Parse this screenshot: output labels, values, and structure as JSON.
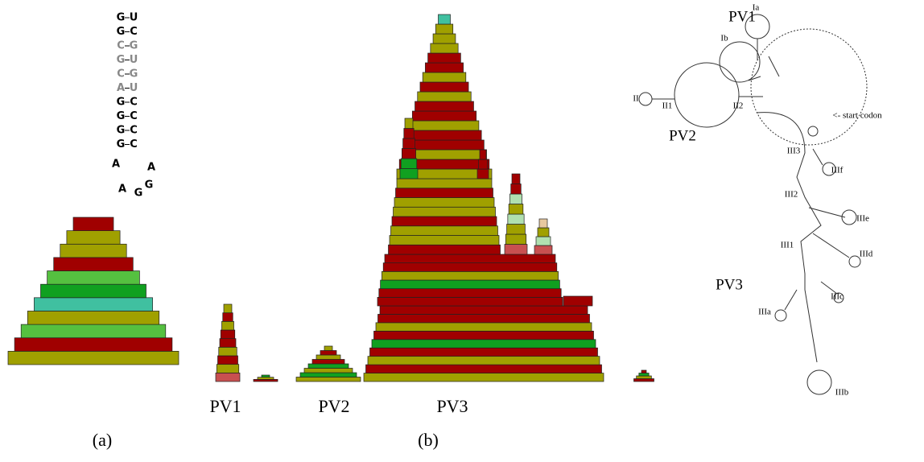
{
  "hairpin": {
    "left": [
      "G",
      "G",
      "C",
      "G",
      "C",
      "A",
      "G",
      "G",
      "G",
      "G"
    ],
    "right": [
      "U",
      "C",
      "G",
      "U",
      "G",
      "U",
      "C",
      "C",
      "C",
      "C"
    ],
    "loop": [
      "A",
      "A",
      "G",
      "G",
      "A"
    ]
  },
  "panel_b": {
    "labels": [
      "PV1",
      "PV2",
      "PV3"
    ]
  },
  "captions": {
    "a": "(a)",
    "b": "(b)"
  },
  "structure": {
    "labels": [
      "Ia",
      "PV1",
      "Ib",
      "II",
      "II1",
      "II2",
      "<- start codon",
      "PV2",
      "III3",
      "IIIf",
      "III2",
      "IIIe",
      "III1",
      "IIId",
      "PV3",
      "IIIc",
      "IIIa",
      "IIIb"
    ]
  }
}
